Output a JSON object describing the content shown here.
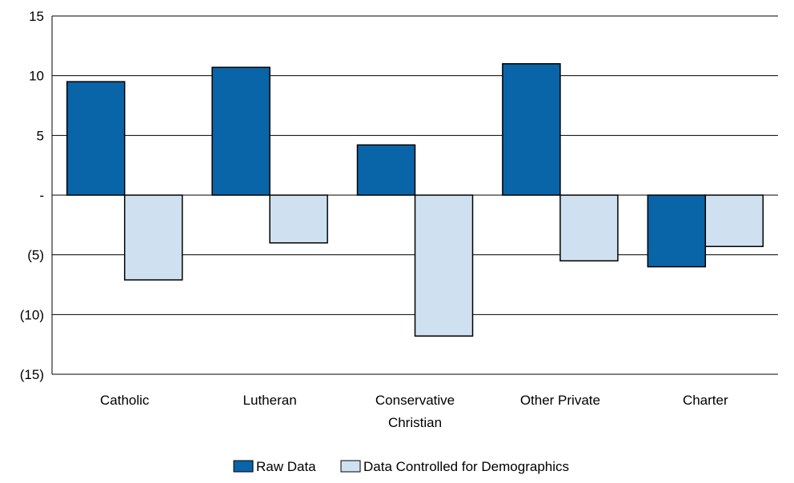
{
  "chart_data": {
    "type": "bar",
    "title": "",
    "xlabel": "",
    "ylabel": "",
    "ylim": [
      -15,
      15
    ],
    "y_ticks": [
      15,
      10,
      5,
      0,
      -5,
      -10,
      -15
    ],
    "y_tick_labels": [
      "15",
      "10",
      "5",
      "-",
      "(5)",
      "(10)",
      "(15)"
    ],
    "categories": [
      "Catholic",
      "Lutheran",
      "Conservative Christian",
      "Other Private",
      "Charter"
    ],
    "category_label_lines": [
      [
        "Catholic"
      ],
      [
        "Lutheran"
      ],
      [
        "Conservative",
        "Christian"
      ],
      [
        "Other Private"
      ],
      [
        "Charter"
      ]
    ],
    "series": [
      {
        "name": "Raw  Data",
        "color": "#0a64a8",
        "values": [
          9.5,
          10.7,
          4.2,
          11.0,
          -6.0
        ]
      },
      {
        "name": "Data Controlled for Demographics",
        "color": "#cfe1f0",
        "values": [
          -7.1,
          -4.0,
          -11.8,
          -5.5,
          -4.3
        ]
      }
    ],
    "grid": true,
    "legend_position": "bottom-center"
  }
}
